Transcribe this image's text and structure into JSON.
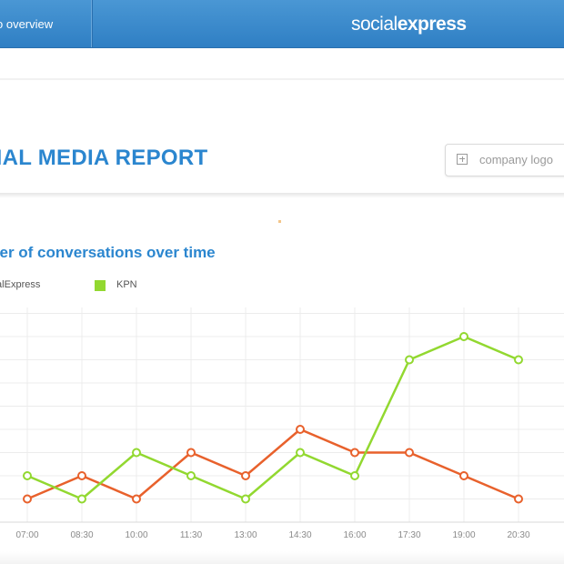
{
  "topbar": {
    "back_label": "o overview",
    "brand_part1": "social",
    "brand_part2": "express"
  },
  "header": {
    "report_title": "CIAL MEDIA REPORT",
    "logo_placeholder": "company logo"
  },
  "chart_data": {
    "type": "line",
    "title": "mber of conversations over time",
    "categories": [
      "07:00",
      "08:30",
      "10:00",
      "11:30",
      "13:00",
      "14:30",
      "16:00",
      "17:30",
      "19:00",
      "20:30"
    ],
    "series": [
      {
        "name": "ocialExpress",
        "color": "#e8612c",
        "values": [
          1,
          2,
          1,
          3,
          2,
          4,
          3,
          3,
          2,
          1
        ]
      },
      {
        "name": "KPN",
        "color": "#92d830",
        "values": [
          2,
          1,
          3,
          2,
          1,
          3,
          2,
          7,
          8,
          7
        ]
      }
    ],
    "grid": true,
    "legend": "top-left"
  },
  "colors": {
    "topbar": "#3a8ace",
    "title_blue": "#2b86cf",
    "series_orange": "#e8612c",
    "series_green": "#92d830"
  }
}
